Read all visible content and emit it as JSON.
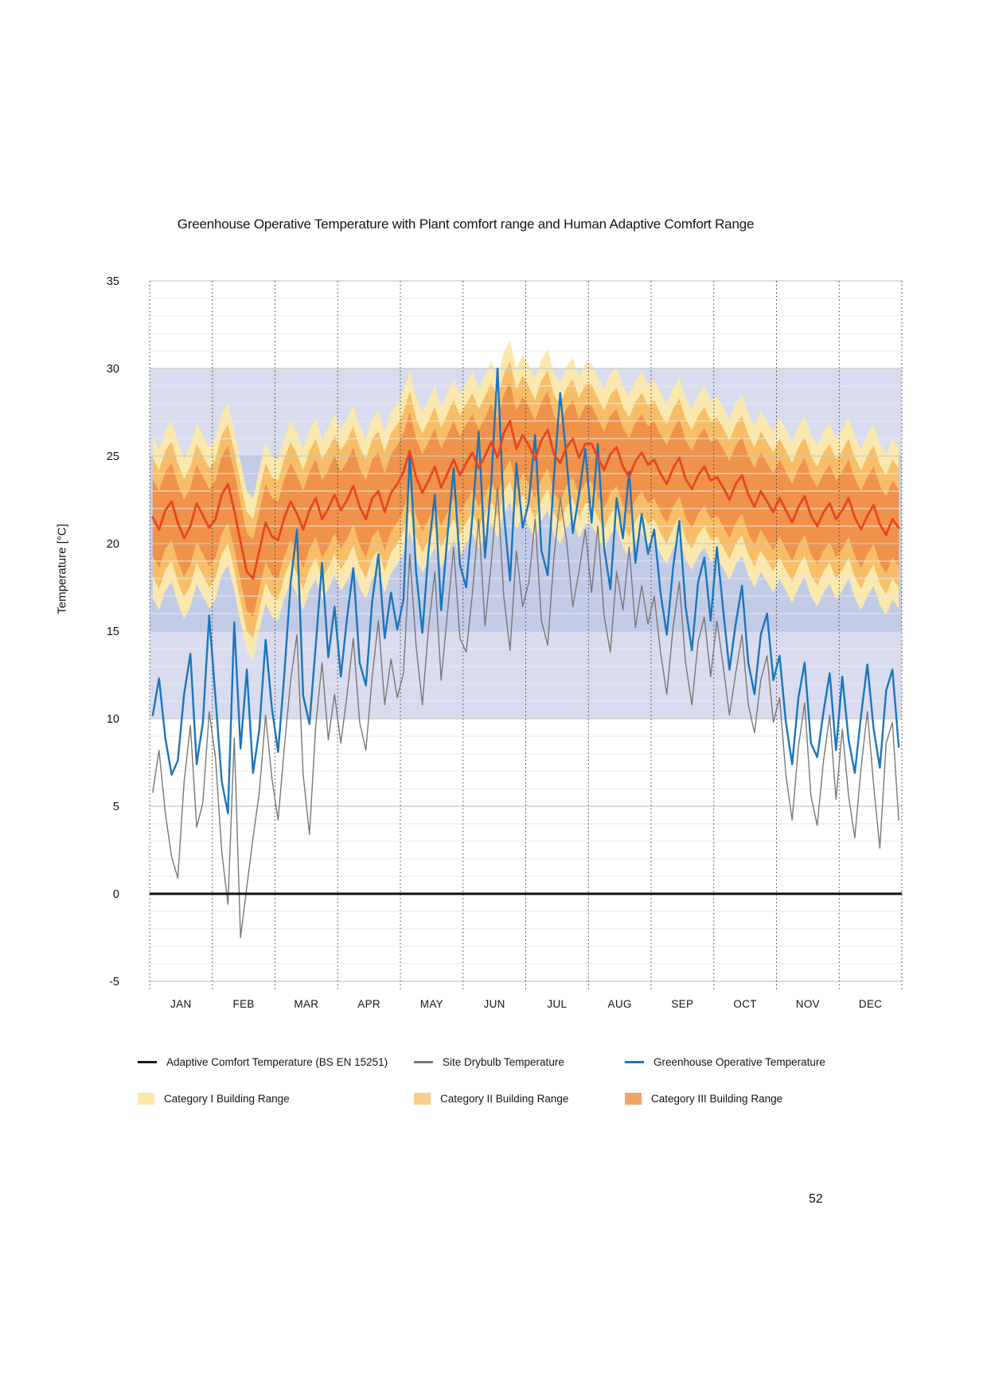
{
  "page": {
    "number": "52"
  },
  "chart_data": {
    "type": "line",
    "title": "Greenhouse Operative Temperature with Plant comfort range and Human Adaptive Comfort Range",
    "ylabel": "Temperature [°C]",
    "ylim": [
      -5,
      35
    ],
    "yticks": [
      35,
      30,
      25,
      20,
      15,
      10,
      5,
      0,
      -5
    ],
    "x_categories": [
      "JAN",
      "FEB",
      "MAR",
      "APR",
      "MAY",
      "JUN",
      "JUL",
      "AUG",
      "SEP",
      "OCT",
      "NOV",
      "DEC"
    ],
    "points_per_month": 10,
    "grid": {
      "minor_step_c": 1,
      "major_step_c": 5,
      "minor_color": "#E9E9E9",
      "major_color": "#C8C8C8",
      "month_line_color": "#3A3A3A"
    },
    "background_bands": [
      {
        "name": "plant-comfort-range-outer",
        "min": 10,
        "max": 30,
        "color": "#D8DCEE"
      },
      {
        "name": "plant-comfort-range-inner",
        "min": 15,
        "max": 25,
        "color": "#C2CBE6"
      }
    ],
    "comfort_categories": [
      {
        "label": "Category I Building Range",
        "halfwidth_c": 4.6,
        "color": "#FBE8AC",
        "legend_color": "#FCE9A9"
      },
      {
        "label": "Category II Building Range",
        "halfwidth_c": 3.4,
        "color": "#F7BE67",
        "legend_color": "#F9CE8C"
      },
      {
        "label": "Category III Building Range",
        "halfwidth_c": 2.2,
        "color": "#F0924A",
        "legend_color": "#F3A26B"
      }
    ],
    "zero_line": {
      "value": 0,
      "color": "#111111"
    },
    "series": [
      {
        "id": "adaptive-comfort",
        "label": "Adaptive Comfort Temperature (BS EN 15251)",
        "line_color": "#E6471D",
        "legend_color": "#1A1A1A",
        "line_width": 2.8,
        "values": [
          21.5,
          20.8,
          21.9,
          22.4,
          21.2,
          20.3,
          21.0,
          22.3,
          21.6,
          20.9,
          21.4,
          22.8,
          23.4,
          21.9,
          20.1,
          18.4,
          18.0,
          19.6,
          21.2,
          20.4,
          20.2,
          21.5,
          22.4,
          21.7,
          20.8,
          21.9,
          22.6,
          21.4,
          22.0,
          22.8,
          21.9,
          22.5,
          23.3,
          22.1,
          21.4,
          22.6,
          23.0,
          21.8,
          22.9,
          23.4,
          24.1,
          25.3,
          23.8,
          22.9,
          23.6,
          24.4,
          23.2,
          24.0,
          24.8,
          23.9,
          24.6,
          25.2,
          24.3,
          25.0,
          25.8,
          24.9,
          26.3,
          27.0,
          25.4,
          26.2,
          25.6,
          24.8,
          25.9,
          26.5,
          25.1,
          24.6,
          25.5,
          26.0,
          24.9,
          25.7,
          25.7,
          24.9,
          24.2,
          25.1,
          25.5,
          24.4,
          23.8,
          24.7,
          25.2,
          24.5,
          24.8,
          24.0,
          23.4,
          24.3,
          24.9,
          23.7,
          23.1,
          23.9,
          24.4,
          23.6,
          23.8,
          23.2,
          22.5,
          23.4,
          23.9,
          22.8,
          22.1,
          23.0,
          22.4,
          21.8,
          22.6,
          21.9,
          21.2,
          22.1,
          22.7,
          21.6,
          21.0,
          21.8,
          22.3,
          21.4,
          21.9,
          22.6,
          21.5,
          20.8,
          21.6,
          22.2,
          21.1,
          20.5,
          21.4,
          20.9
        ]
      },
      {
        "id": "site-drybulb",
        "label": "Site Drybulb Temperature",
        "line_color": "#787878",
        "legend_color": "#787878",
        "line_width": 1.4,
        "values": [
          5.8,
          8.2,
          4.6,
          2.1,
          0.9,
          6.4,
          9.6,
          3.8,
          5.2,
          10.4,
          7.8,
          2.4,
          -0.6,
          8.9,
          -2.5,
          0.4,
          3.2,
          5.8,
          10.2,
          6.6,
          4.2,
          8.4,
          12.2,
          14.8,
          6.8,
          3.4,
          9.6,
          13.2,
          8.8,
          11.4,
          8.6,
          11.4,
          14.6,
          9.8,
          8.2,
          12.4,
          15.6,
          10.8,
          13.4,
          11.2,
          12.6,
          19.4,
          14.2,
          10.8,
          15.2,
          18.4,
          12.2,
          16.0,
          19.8,
          14.6,
          13.8,
          17.2,
          21.4,
          15.3,
          18.9,
          23.2,
          17.0,
          13.9,
          19.6,
          16.4,
          17.8,
          21.4,
          15.6,
          14.2,
          19.2,
          22.6,
          20.2,
          16.4,
          18.4,
          20.8,
          17.2,
          21.0,
          15.9,
          13.8,
          18.4,
          16.2,
          19.8,
          15.2,
          17.6,
          15.4,
          17.0,
          13.8,
          11.4,
          15.2,
          17.8,
          13.2,
          10.8,
          14.4,
          15.8,
          12.4,
          15.6,
          13.0,
          10.2,
          12.6,
          14.8,
          10.8,
          9.2,
          12.2,
          13.6,
          9.8,
          11.2,
          6.8,
          4.2,
          8.4,
          10.9,
          5.6,
          3.9,
          7.6,
          10.2,
          5.4,
          9.4,
          5.6,
          3.2,
          7.2,
          10.4,
          6.2,
          2.6,
          8.6,
          9.8,
          4.2
        ]
      },
      {
        "id": "greenhouse-operative",
        "label": "Greenhouse Operative Temperature",
        "line_color": "#1B75BC",
        "legend_color": "#1B75BC",
        "line_width": 2.4,
        "values": [
          10.2,
          12.3,
          8.9,
          6.8,
          7.6,
          11.4,
          13.7,
          7.4,
          9.8,
          15.9,
          11.2,
          6.4,
          4.6,
          15.5,
          8.3,
          12.8,
          6.9,
          9.4,
          14.5,
          10.6,
          8.1,
          12.6,
          17.8,
          20.8,
          11.3,
          9.7,
          14.2,
          18.9,
          13.5,
          16.4,
          12.4,
          15.8,
          18.6,
          13.2,
          11.9,
          16.7,
          19.4,
          14.6,
          17.2,
          15.1,
          16.8,
          25.2,
          18.4,
          14.9,
          19.6,
          22.8,
          16.2,
          20.4,
          24.3,
          18.8,
          17.5,
          21.6,
          26.4,
          19.2,
          23.5,
          30.0,
          21.8,
          17.9,
          24.6,
          20.9,
          22.4,
          26.2,
          19.6,
          18.2,
          23.8,
          28.6,
          24.9,
          20.6,
          22.8,
          25.4,
          21.2,
          25.7,
          19.8,
          17.4,
          22.6,
          20.3,
          24.1,
          18.9,
          21.7,
          19.4,
          20.8,
          17.2,
          14.8,
          18.6,
          21.3,
          16.4,
          13.9,
          17.8,
          19.2,
          15.6,
          19.8,
          16.2,
          12.8,
          15.4,
          17.6,
          13.2,
          11.4,
          14.8,
          16.0,
          12.2,
          13.6,
          9.8,
          7.4,
          11.2,
          13.2,
          8.6,
          7.8,
          10.4,
          12.6,
          8.2,
          12.4,
          8.8,
          6.9,
          10.2,
          13.1,
          9.4,
          7.2,
          11.6,
          12.8,
          8.4
        ]
      }
    ]
  }
}
